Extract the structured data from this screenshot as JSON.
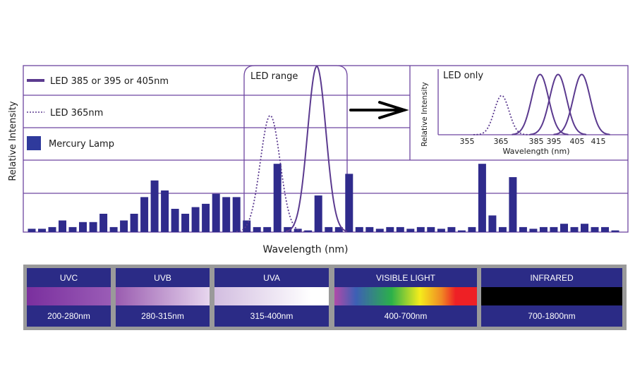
{
  "chart_data": [
    {
      "type": "bar",
      "xlabel": "Wavelength (nm)",
      "ylabel": "Relative Intensity",
      "ylim": [
        0,
        100
      ],
      "grid": true,
      "legend_placement": "top-left",
      "legend": [
        {
          "label": "LED 385 or 395 or 405nm",
          "style": "solid-line"
        },
        {
          "label": "LED 365nm",
          "style": "dotted-line"
        },
        {
          "label": "Mercury Lamp",
          "style": "bar"
        }
      ],
      "annotation": "LED range",
      "series": [
        {
          "name": "Mercury Lamp",
          "type": "bar",
          "values": [
            2,
            2,
            3,
            7,
            3,
            6,
            6,
            11,
            3,
            7,
            11,
            21,
            31,
            25,
            14,
            11,
            15,
            17,
            23,
            21,
            21,
            7,
            3,
            3,
            41,
            3,
            2,
            1,
            22,
            3,
            3,
            35,
            3,
            3,
            2,
            3,
            3,
            2,
            3,
            3,
            2,
            3,
            1,
            3,
            41,
            10,
            3,
            33,
            3,
            2,
            3,
            3,
            5,
            3,
            5,
            3,
            3,
            1
          ]
        },
        {
          "name": "LED 365nm",
          "type": "line",
          "peak": 70
        },
        {
          "name": "LED 385 or 395 or 405nm",
          "type": "line",
          "peak": 100
        }
      ]
    },
    {
      "type": "line",
      "title": "LED only",
      "xlabel": "Wavelength (nm)",
      "ylabel": "Relative Intensity",
      "xticks": [
        355,
        365,
        385,
        395,
        405,
        415
      ],
      "ylim": [
        0,
        1.05
      ],
      "series": [
        {
          "name": "LED 365nm",
          "style": "dotted",
          "peak_wavelength": 365,
          "peak": 0.65
        },
        {
          "name": "LED 385nm",
          "style": "solid",
          "peak_wavelength": 385,
          "peak": 1.0
        },
        {
          "name": "LED 395nm",
          "style": "solid",
          "peak_wavelength": 395,
          "peak": 1.0
        },
        {
          "name": "LED 405nm",
          "style": "solid",
          "peak_wavelength": 405,
          "peak": 1.0
        }
      ]
    }
  ],
  "spectrum_bands": [
    {
      "name": "UVC",
      "range": "200-280nm",
      "gradient": "linear-gradient(90deg,#7a2f9e,#9a5cb6)"
    },
    {
      "name": "UVB",
      "range": "280-315nm",
      "gradient": "linear-gradient(90deg,#9a5cb0,#e7d6ee)"
    },
    {
      "name": "UVA",
      "range": "315-400nm",
      "gradient": "linear-gradient(90deg,#d2bde0,#ffffff 85%)"
    },
    {
      "name": "VISIBLE LIGHT",
      "range": "400-700nm",
      "gradient": "linear-gradient(90deg,#b04aa8,#3d5fb5 15%,#2bb04a 40%,#f5ec1c 60%,#f08a24 75%,#ee2025 85%,#ee2025)"
    },
    {
      "name": "INFRARED",
      "range": "700-1800nm",
      "gradient": "linear-gradient(90deg,#000,#000)"
    }
  ],
  "colors": {
    "line": "#5b3a8f",
    "bar": "#2f2b8c",
    "grid": "#6e46a0",
    "band_bg": "#2b2b86",
    "band_frame": "#9a9a9a"
  }
}
